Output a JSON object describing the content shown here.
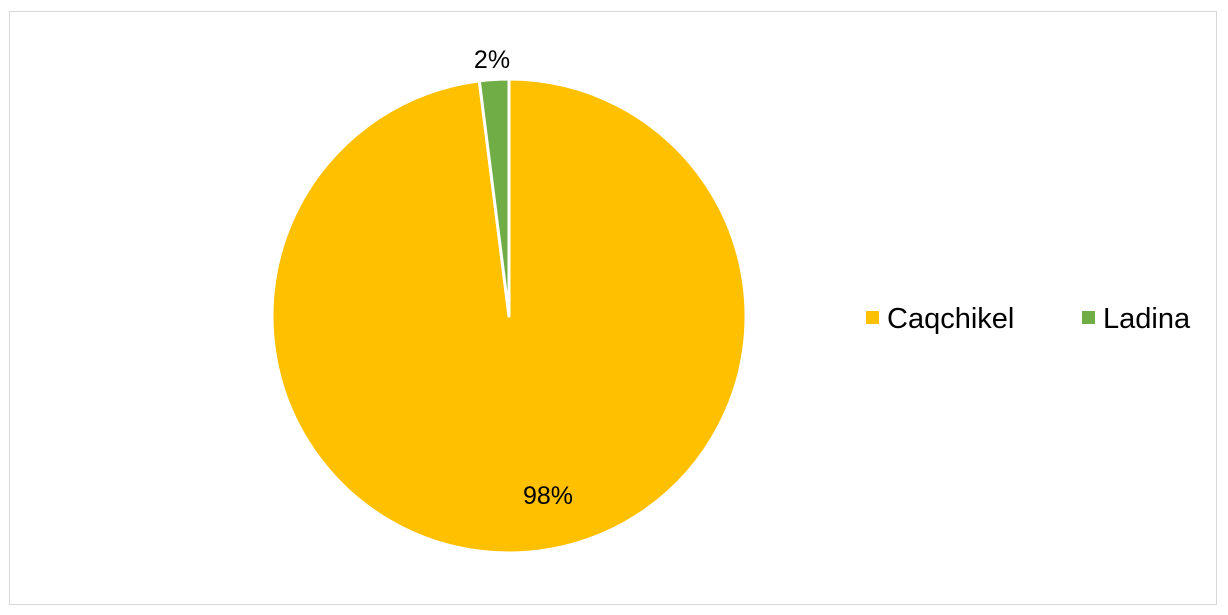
{
  "chart_data": {
    "type": "pie",
    "categories": [
      "Caqchikel",
      "Ladina"
    ],
    "values": [
      98,
      2
    ],
    "data_labels": [
      "98%",
      "2%"
    ],
    "colors": [
      "#FFC000",
      "#70AD47"
    ],
    "legend": {
      "placement": "right",
      "entries": [
        "Caqchikel",
        "Ladina"
      ]
    },
    "title": ""
  }
}
